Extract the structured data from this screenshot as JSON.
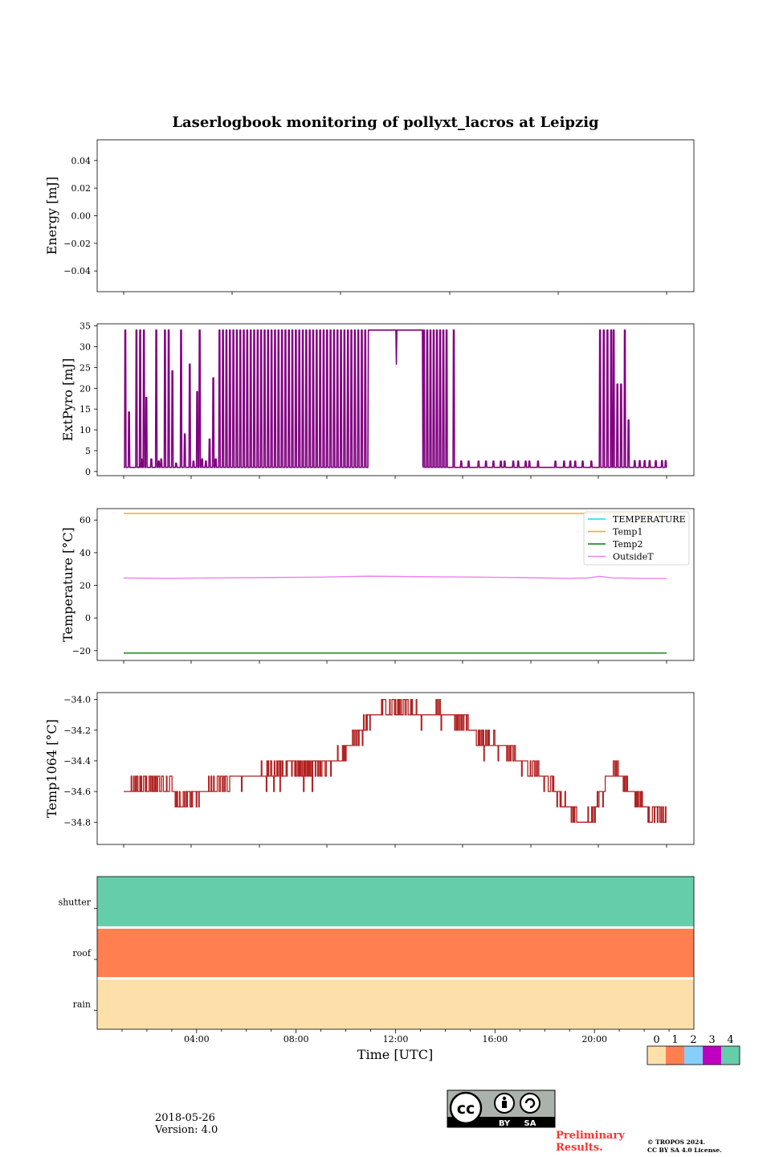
{
  "chart_data": [
    {
      "type": "line",
      "title": "Laserlogbook monitoring of pollyxt_lacros at Leipzig",
      "ylabel": "Energy [mJ]",
      "ylim": [
        -0.055,
        0.055
      ],
      "yticks": [
        0.04,
        0.02,
        0.0,
        -0.02,
        -0.04
      ],
      "yticklabels": [
        "0.04",
        "0.02",
        "0.00",
        "−0.02",
        "−0.04"
      ],
      "series": []
    },
    {
      "type": "line",
      "ylabel": "ExtPyro [mJ]",
      "ylim": [
        -1,
        35.5
      ],
      "yticks": [
        0,
        5,
        10,
        15,
        20,
        25,
        30,
        35
      ],
      "yticklabels": [
        "0",
        "5",
        "10",
        "15",
        "20",
        "25",
        "30",
        "35"
      ],
      "color": "#800080",
      "baseline": 1,
      "high": 34,
      "hour_range": [
        1.1,
        23.0
      ],
      "spikes": [
        {
          "t": 1.15,
          "v": 34
        },
        {
          "t": 1.3,
          "v": 14.3
        },
        {
          "t": 1.6,
          "v": 34
        },
        {
          "t": 1.75,
          "v": 34
        },
        {
          "t": 1.8,
          "v": 3
        },
        {
          "t": 1.9,
          "v": 34
        },
        {
          "t": 2.0,
          "v": 17.8
        },
        {
          "t": 2.2,
          "v": 3
        },
        {
          "t": 2.4,
          "v": 34
        },
        {
          "t": 2.5,
          "v": 2.5
        },
        {
          "t": 2.6,
          "v": 3
        },
        {
          "t": 2.75,
          "v": 34
        },
        {
          "t": 2.9,
          "v": 34
        },
        {
          "t": 3.05,
          "v": 24.2
        },
        {
          "t": 3.2,
          "v": 2
        },
        {
          "t": 3.4,
          "v": 34
        },
        {
          "t": 3.55,
          "v": 9.0
        },
        {
          "t": 3.75,
          "v": 25.8
        },
        {
          "t": 3.9,
          "v": 2.5
        },
        {
          "t": 4.05,
          "v": 19.2
        },
        {
          "t": 4.15,
          "v": 34
        },
        {
          "t": 4.25,
          "v": 3
        },
        {
          "t": 4.4,
          "v": 2.5
        },
        {
          "t": 4.55,
          "v": 7.8
        },
        {
          "t": 4.7,
          "v": 22.5
        },
        {
          "t": 4.8,
          "v": 3
        }
      ],
      "burst1": [
        4.95,
        10.95
      ],
      "plateau": [
        10.95,
        13.15
      ],
      "plateau_dip": {
        "t": 12.1,
        "v": 25.8
      },
      "burst2": [
        13.15,
        14.2
      ],
      "late_spike": {
        "t": 14.4,
        "v": 34
      },
      "small_blips": [
        14.7,
        15.0,
        15.4,
        15.7,
        16.0,
        16.3,
        16.45,
        16.8,
        17.0,
        17.3,
        17.45,
        17.8,
        18.5,
        18.85,
        19.1,
        19.3,
        19.6,
        19.95
      ],
      "burst3": [
        20.25,
        21.45
      ],
      "burst3_spikes": [
        {
          "t": 20.3,
          "v": 34
        },
        {
          "t": 20.45,
          "v": 34
        },
        {
          "t": 20.6,
          "v": 34
        },
        {
          "t": 20.75,
          "v": 34
        },
        {
          "t": 20.85,
          "v": 34
        },
        {
          "t": 21.0,
          "v": 21.0
        },
        {
          "t": 21.15,
          "v": 21.0
        },
        {
          "t": 21.3,
          "v": 34
        },
        {
          "t": 21.45,
          "v": 12.4
        }
      ],
      "tail_blips": [
        21.7,
        21.9,
        22.1,
        22.3,
        22.55,
        22.8,
        22.95
      ]
    },
    {
      "type": "line",
      "ylabel": "Temperature [°C]",
      "ylim": [
        -26,
        67
      ],
      "yticks": [
        60,
        40,
        20,
        0,
        -20
      ],
      "yticklabels": [
        "60",
        "40",
        "20",
        "0",
        "−20"
      ],
      "series": [
        {
          "name": "TEMPERATURE",
          "color": "#00e5e5",
          "values": []
        },
        {
          "name": "Temp1",
          "color": "#ffa500",
          "constant": 64
        },
        {
          "name": "Temp2",
          "color": "#008000",
          "constant": -21.5
        },
        {
          "name": "OutsideT",
          "color": "#ee82ee",
          "x": [
            1.1,
            3,
            5,
            7,
            9,
            11,
            13,
            15,
            17,
            19,
            19.8,
            20.3,
            20.8,
            22,
            23.0
          ],
          "y": [
            24.5,
            24.3,
            24.6,
            24.8,
            25.0,
            25.6,
            25.3,
            25.1,
            24.8,
            24.3,
            24.5,
            25.5,
            24.6,
            24.3,
            24.2
          ]
        }
      ]
    },
    {
      "type": "line",
      "ylabel": "Temp1064 [°C]",
      "ylim": [
        -34.945,
        -33.955
      ],
      "yticks": [
        -34.0,
        -34.2,
        -34.4,
        -34.6,
        -34.8
      ],
      "yticklabels": [
        "−34.0",
        "−34.2",
        "−34.4",
        "−34.6",
        "−34.8"
      ],
      "color": "#b22222",
      "resolution": 0.1,
      "x": [
        1.1,
        2.0,
        3.0,
        3.3,
        3.8,
        4.5,
        5.5,
        6.5,
        7.5,
        8.5,
        9.5,
        10.2,
        11.0,
        11.8,
        12.5,
        13.2,
        14.0,
        14.8,
        15.6,
        16.4,
        17.2,
        18.0,
        18.8,
        19.4,
        19.9,
        20.5,
        21.0,
        21.6,
        22.2,
        23.0
      ],
      "y": [
        -34.6,
        -34.55,
        -34.58,
        -34.65,
        -34.65,
        -34.58,
        -34.52,
        -34.5,
        -34.45,
        -34.45,
        -34.42,
        -34.3,
        -34.12,
        -34.05,
        -34.05,
        -34.1,
        -34.08,
        -34.15,
        -34.25,
        -34.32,
        -34.42,
        -34.5,
        -34.65,
        -34.78,
        -34.8,
        -34.55,
        -34.45,
        -34.62,
        -34.72,
        -34.8
      ]
    },
    {
      "type": "heatmap",
      "rows": [
        "shutter",
        "roof",
        "rain"
      ],
      "row_values": [
        4,
        1,
        0
      ],
      "xlabel": "Time [UTC]",
      "xticklabels": [
        "04:00",
        "08:00",
        "12:00",
        "16:00",
        "20:00"
      ],
      "xticks_hours": [
        4,
        8,
        12,
        16,
        20
      ],
      "xlim_hours": [
        0,
        24
      ],
      "colorbar": {
        "ticks": [
          "0",
          "1",
          "2",
          "3",
          "4"
        ],
        "colors": [
          "#fddfaa",
          "#ff7f50",
          "#87cefa",
          "#c000c0",
          "#66cdaa"
        ]
      }
    }
  ],
  "footer": {
    "date": "2018-05-26",
    "version": "Version: 4.0",
    "preliminary": [
      "Preliminary",
      "Results."
    ],
    "copyright": [
      "© TROPOS 2024.",
      "CC BY SA 4.0 License."
    ],
    "license_badge": {
      "by": "BY",
      "sa": "SA"
    }
  }
}
